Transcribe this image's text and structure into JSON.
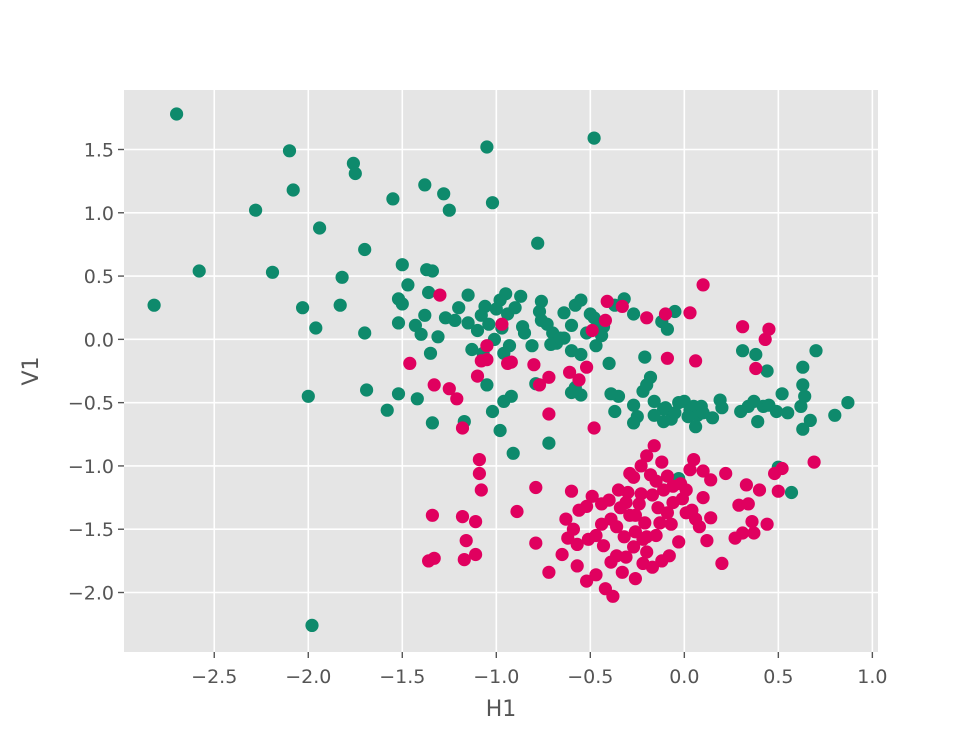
{
  "chart_data": {
    "type": "scatter",
    "title": "",
    "xlabel": "H1",
    "ylabel": "V1",
    "xlim": [
      -2.98,
      1.03
    ],
    "ylim": [
      -2.47,
      1.97
    ],
    "x_ticks": [
      -2.5,
      -2.0,
      -1.5,
      -1.0,
      -0.5,
      0.0,
      0.5,
      1.0
    ],
    "x_tick_labels": [
      "−2.5",
      "−2.0",
      "−1.5",
      "−1.0",
      "−0.5",
      "0.0",
      "0.5",
      "1.0"
    ],
    "y_ticks": [
      1.5,
      1.0,
      0.5,
      0.0,
      -0.5,
      -1.0,
      -1.5,
      -2.0
    ],
    "y_tick_labels": [
      "1.5",
      "1.0",
      "0.5",
      "0.0",
      "−0.5",
      "−1.0",
      "−1.5",
      "−2.0"
    ],
    "grid": true,
    "background": "#e5e5e5",
    "grid_color": "#ffffff",
    "legend": "none",
    "series": [
      {
        "color": "#0e8a6c",
        "points": [
          [
            -2.7,
            1.78
          ],
          [
            -2.82,
            0.27
          ],
          [
            -2.58,
            0.54
          ],
          [
            -2.28,
            1.02
          ],
          [
            -2.1,
            1.49
          ],
          [
            -2.08,
            1.18
          ],
          [
            -2.19,
            0.53
          ],
          [
            -2.03,
            0.25
          ],
          [
            -1.96,
            0.09
          ],
          [
            -1.94,
            0.88
          ],
          [
            -2.0,
            -0.45
          ],
          [
            -1.98,
            -2.26
          ],
          [
            -1.76,
            1.39
          ],
          [
            -1.75,
            1.31
          ],
          [
            -1.7,
            0.71
          ],
          [
            -1.82,
            0.49
          ],
          [
            -1.83,
            0.27
          ],
          [
            -1.7,
            0.05
          ],
          [
            -1.69,
            -0.4
          ],
          [
            -1.55,
            1.11
          ],
          [
            -1.38,
            1.22
          ],
          [
            -1.28,
            1.15
          ],
          [
            -1.25,
            1.02
          ],
          [
            -1.05,
            1.52
          ],
          [
            -1.02,
            1.08
          ],
          [
            -0.78,
            0.76
          ],
          [
            -0.48,
            1.59
          ],
          [
            -1.5,
            0.59
          ],
          [
            -1.47,
            0.43
          ],
          [
            -1.37,
            0.55
          ],
          [
            -1.34,
            0.54
          ],
          [
            -1.52,
            0.32
          ],
          [
            -1.5,
            0.28
          ],
          [
            -1.52,
            0.13
          ],
          [
            -1.43,
            0.11
          ],
          [
            -1.4,
            0.04
          ],
          [
            -1.38,
            0.19
          ],
          [
            -1.36,
            0.37
          ],
          [
            -1.31,
            0.02
          ],
          [
            -1.35,
            -0.11
          ],
          [
            -1.27,
            0.17
          ],
          [
            -1.2,
            0.25
          ],
          [
            -1.22,
            0.15
          ],
          [
            -1.15,
            0.13
          ],
          [
            -1.15,
            0.35
          ],
          [
            -1.1,
            0.07
          ],
          [
            -1.08,
            0.19
          ],
          [
            -1.06,
            0.26
          ],
          [
            -1.04,
            0.12
          ],
          [
            -1.0,
            0.24
          ],
          [
            -0.98,
            0.31
          ],
          [
            -0.95,
            0.36
          ],
          [
            -0.94,
            0.2
          ],
          [
            -0.9,
            0.25
          ],
          [
            -0.87,
            0.34
          ],
          [
            -0.97,
            0.09
          ],
          [
            -1.01,
            0.0
          ],
          [
            -0.93,
            -0.05
          ],
          [
            -0.85,
            0.05
          ],
          [
            -0.81,
            -0.05
          ],
          [
            -0.77,
            0.22
          ],
          [
            -0.76,
            0.3
          ],
          [
            -0.73,
            0.12
          ],
          [
            -0.7,
            0.05
          ],
          [
            -0.68,
            -0.03
          ],
          [
            -0.64,
            0.21
          ],
          [
            -0.6,
            0.11
          ],
          [
            -0.58,
            0.27
          ],
          [
            -0.55,
            0.31
          ],
          [
            -0.5,
            0.2
          ],
          [
            -0.48,
            0.17
          ],
          [
            -0.52,
            0.05
          ],
          [
            -0.46,
            0.1
          ],
          [
            -0.43,
            0.1
          ],
          [
            -0.55,
            -0.12
          ],
          [
            -0.47,
            -0.05
          ],
          [
            -0.6,
            -0.09
          ],
          [
            -0.64,
            0.01
          ],
          [
            -0.4,
            -0.19
          ],
          [
            -0.55,
            -0.44
          ],
          [
            -0.58,
            -0.38
          ],
          [
            -0.6,
            -0.42
          ],
          [
            -0.37,
            0.27
          ],
          [
            -0.32,
            0.32
          ],
          [
            -0.21,
            -0.14
          ],
          [
            -0.18,
            -0.3
          ],
          [
            -0.2,
            -0.36
          ],
          [
            -0.22,
            -0.41
          ],
          [
            -0.27,
            -0.52
          ],
          [
            -0.35,
            -0.45
          ],
          [
            -0.37,
            -0.57
          ],
          [
            -0.25,
            -0.61
          ],
          [
            -0.27,
            -0.66
          ],
          [
            -0.16,
            -0.49
          ],
          [
            -0.11,
            -0.65
          ],
          [
            -0.07,
            -0.63
          ],
          [
            -0.03,
            -0.5
          ],
          [
            0.0,
            -0.49
          ],
          [
            0.03,
            -0.56
          ],
          [
            0.05,
            -0.53
          ],
          [
            0.07,
            -0.6
          ],
          [
            0.09,
            -0.53
          ],
          [
            0.06,
            -0.69
          ],
          [
            0.15,
            -0.62
          ],
          [
            0.19,
            -0.48
          ],
          [
            0.2,
            -0.54
          ],
          [
            0.3,
            -0.57
          ],
          [
            0.34,
            -0.53
          ],
          [
            0.37,
            -0.49
          ],
          [
            0.39,
            -0.65
          ],
          [
            0.42,
            -0.53
          ],
          [
            0.45,
            -0.52
          ],
          [
            0.49,
            -0.57
          ],
          [
            0.52,
            -0.43
          ],
          [
            0.55,
            -0.58
          ],
          [
            0.62,
            -0.53
          ],
          [
            0.63,
            -0.36
          ],
          [
            0.64,
            -0.45
          ],
          [
            0.63,
            -0.71
          ],
          [
            0.67,
            -0.64
          ],
          [
            0.8,
            -0.6
          ],
          [
            0.87,
            -0.5
          ],
          [
            0.7,
            -0.09
          ],
          [
            0.63,
            -0.22
          ],
          [
            0.44,
            -0.25
          ],
          [
            0.31,
            -0.09
          ],
          [
            0.38,
            -0.12
          ],
          [
            0.57,
            -1.21
          ],
          [
            0.5,
            -1.01
          ],
          [
            -0.03,
            -1.1
          ],
          [
            -0.72,
            -0.82
          ],
          [
            -0.91,
            -0.9
          ],
          [
            -1.34,
            -0.66
          ],
          [
            -1.42,
            -0.47
          ],
          [
            -1.52,
            -0.43
          ],
          [
            -1.58,
            -0.56
          ],
          [
            -1.17,
            -0.65
          ],
          [
            -1.02,
            -0.57
          ],
          [
            -0.92,
            -0.45
          ],
          [
            -0.96,
            -0.49
          ],
          [
            -0.98,
            -0.72
          ],
          [
            -1.05,
            -0.36
          ],
          [
            -0.79,
            -0.35
          ],
          [
            -0.71,
            -0.04
          ],
          [
            -0.66,
            0.01
          ],
          [
            -0.76,
            0.15
          ],
          [
            -0.86,
            0.1
          ],
          [
            -1.13,
            -0.08
          ],
          [
            -1.07,
            -0.11
          ],
          [
            -0.96,
            -0.11
          ],
          [
            -0.27,
            0.2
          ],
          [
            -0.39,
            -0.43
          ],
          [
            -0.44,
            0.03
          ],
          [
            -0.12,
            0.14
          ],
          [
            -0.09,
            0.08
          ],
          [
            -0.05,
            0.22
          ],
          [
            -0.11,
            -0.55
          ],
          [
            -0.16,
            -0.6
          ],
          [
            -0.1,
            -0.54
          ],
          [
            -0.05,
            -0.58
          ],
          [
            0.02,
            -0.61
          ],
          [
            0.1,
            -0.58
          ]
        ]
      },
      {
        "color": "#e0005f",
        "points": [
          [
            -1.3,
            0.35
          ],
          [
            -1.46,
            -0.19
          ],
          [
            -1.33,
            -0.36
          ],
          [
            -1.25,
            -0.39
          ],
          [
            -1.21,
            -0.47
          ],
          [
            -1.18,
            -0.7
          ],
          [
            -1.1,
            -0.29
          ],
          [
            -1.08,
            -0.17
          ],
          [
            -1.05,
            -0.16
          ],
          [
            -1.09,
            -0.95
          ],
          [
            -1.09,
            -1.06
          ],
          [
            -1.08,
            -1.19
          ],
          [
            -1.11,
            -1.44
          ],
          [
            -1.18,
            -1.4
          ],
          [
            -1.16,
            -1.59
          ],
          [
            -1.17,
            -1.74
          ],
          [
            -1.11,
            -1.7
          ],
          [
            -1.34,
            -1.39
          ],
          [
            -1.33,
            -1.73
          ],
          [
            -1.36,
            -1.75
          ],
          [
            -1.05,
            -0.05
          ],
          [
            -0.97,
            0.12
          ],
          [
            -0.94,
            -0.19
          ],
          [
            -0.92,
            -0.18
          ],
          [
            -0.8,
            -0.2
          ],
          [
            -0.77,
            -0.36
          ],
          [
            -0.72,
            -0.3
          ],
          [
            -0.72,
            -0.59
          ],
          [
            -0.79,
            -1.17
          ],
          [
            -0.89,
            -1.36
          ],
          [
            -0.79,
            -1.61
          ],
          [
            -0.72,
            -1.84
          ],
          [
            -0.61,
            -0.26
          ],
          [
            -0.56,
            -0.32
          ],
          [
            -0.52,
            -0.22
          ],
          [
            -0.49,
            0.07
          ],
          [
            -0.42,
            0.15
          ],
          [
            -0.41,
            0.3
          ],
          [
            -0.33,
            0.26
          ],
          [
            -0.2,
            0.17
          ],
          [
            -0.1,
            0.2
          ],
          [
            0.03,
            0.21
          ],
          [
            0.1,
            0.43
          ],
          [
            -0.09,
            -0.15
          ],
          [
            0.06,
            -0.17
          ],
          [
            -0.48,
            -0.7
          ],
          [
            0.31,
            0.1
          ],
          [
            0.43,
            0.0
          ],
          [
            0.45,
            0.08
          ],
          [
            0.38,
            -0.23
          ],
          [
            0.69,
            -0.97
          ],
          [
            0.48,
            -1.06
          ],
          [
            0.52,
            -1.02
          ],
          [
            0.5,
            -1.2
          ],
          [
            0.4,
            -1.19
          ],
          [
            0.33,
            -1.15
          ],
          [
            0.29,
            -1.31
          ],
          [
            0.34,
            -1.3
          ],
          [
            0.36,
            -1.44
          ],
          [
            0.31,
            -1.53
          ],
          [
            0.37,
            -1.53
          ],
          [
            0.22,
            -1.06
          ],
          [
            0.14,
            -1.11
          ],
          [
            0.1,
            -1.04
          ],
          [
            0.05,
            -0.95
          ],
          [
            0.03,
            -1.03
          ],
          [
            0.01,
            -1.19
          ],
          [
            -0.02,
            -1.14
          ],
          [
            0.1,
            -1.25
          ],
          [
            0.14,
            -1.41
          ],
          [
            0.12,
            -1.59
          ],
          [
            0.2,
            -1.77
          ],
          [
            0.06,
            -1.42
          ],
          [
            0.01,
            -1.37
          ],
          [
            -0.06,
            -1.29
          ],
          [
            -0.09,
            -1.37
          ],
          [
            -0.03,
            -1.6
          ],
          [
            -0.08,
            -1.71
          ],
          [
            -0.12,
            -1.75
          ],
          [
            -0.17,
            -1.8
          ],
          [
            -0.2,
            -1.68
          ],
          [
            -0.22,
            -1.58
          ],
          [
            -0.26,
            -1.52
          ],
          [
            -0.29,
            -1.39
          ],
          [
            -0.31,
            -1.29
          ],
          [
            -0.35,
            -1.19
          ],
          [
            -0.4,
            -1.27
          ],
          [
            -0.44,
            -1.3
          ],
          [
            -0.49,
            -1.24
          ],
          [
            -0.52,
            -1.32
          ],
          [
            -0.56,
            -1.35
          ],
          [
            -0.6,
            -1.2
          ],
          [
            -0.63,
            -1.42
          ],
          [
            -0.62,
            -1.57
          ],
          [
            -0.65,
            -1.7
          ],
          [
            -0.57,
            -1.79
          ],
          [
            -0.52,
            -1.91
          ],
          [
            -0.47,
            -1.86
          ],
          [
            -0.42,
            -1.97
          ],
          [
            -0.38,
            -2.03
          ],
          [
            -0.36,
            -1.71
          ],
          [
            -0.33,
            -1.84
          ],
          [
            -0.26,
            -1.89
          ],
          [
            -0.22,
            -1.77
          ],
          [
            -0.27,
            -1.09
          ],
          [
            -0.23,
            -1.0
          ],
          [
            -0.2,
            -0.92
          ],
          [
            -0.16,
            -0.84
          ],
          [
            -0.12,
            -0.97
          ],
          [
            -0.09,
            -1.08
          ],
          [
            -0.06,
            -1.16
          ],
          [
            -0.17,
            -1.23
          ],
          [
            -0.14,
            -1.33
          ],
          [
            -0.13,
            -1.45
          ],
          [
            -0.15,
            -1.55
          ],
          [
            -0.21,
            -1.45
          ],
          [
            -0.24,
            -1.3
          ],
          [
            -0.3,
            -1.21
          ],
          [
            -0.34,
            -1.33
          ],
          [
            -0.39,
            -1.42
          ],
          [
            -0.44,
            -1.46
          ],
          [
            -0.47,
            -1.55
          ],
          [
            -0.51,
            -1.58
          ],
          [
            -0.57,
            -1.62
          ],
          [
            -0.59,
            -1.5
          ],
          [
            -0.43,
            -1.63
          ],
          [
            -0.39,
            -1.76
          ],
          [
            -0.31,
            -1.72
          ],
          [
            -0.27,
            -1.64
          ],
          [
            -0.2,
            -1.56
          ],
          [
            -0.07,
            -1.46
          ],
          [
            0.04,
            -1.35
          ],
          [
            0.08,
            -1.48
          ],
          [
            0.27,
            -1.57
          ],
          [
            0.44,
            -1.46
          ],
          [
            -0.01,
            -1.26
          ],
          [
            -0.32,
            -1.56
          ],
          [
            -0.36,
            -1.48
          ],
          [
            -0.26,
            -1.39
          ],
          [
            -0.11,
            -1.19
          ],
          [
            -0.18,
            -1.07
          ],
          [
            -0.29,
            -1.06
          ],
          [
            -0.23,
            -1.22
          ],
          [
            -0.15,
            -1.12
          ]
        ]
      }
    ]
  }
}
